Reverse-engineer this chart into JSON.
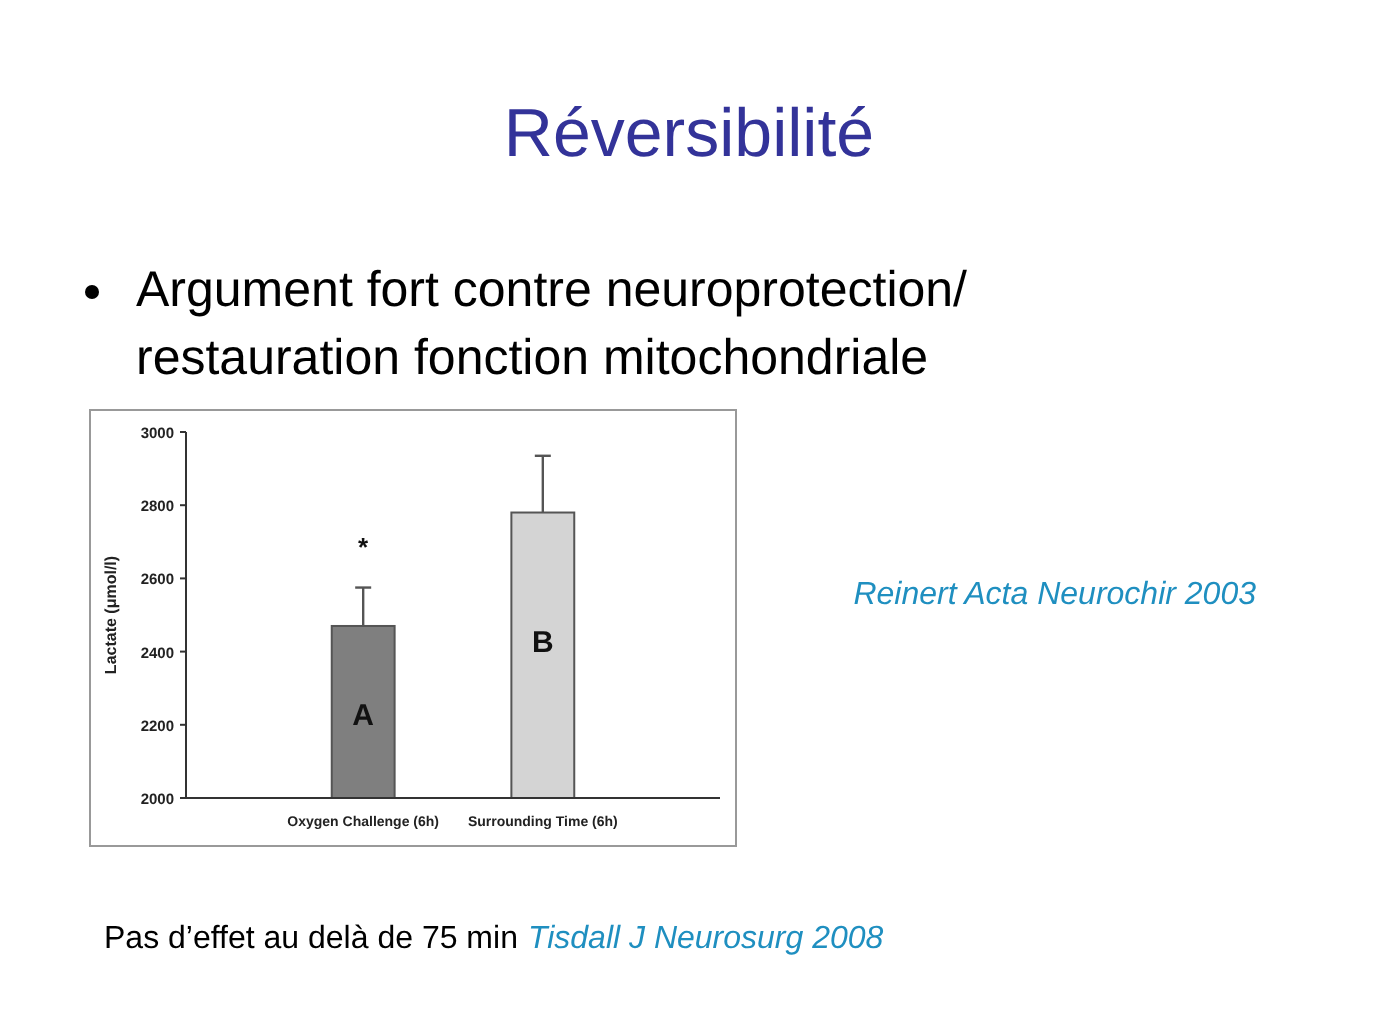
{
  "chart_data": {
    "type": "bar",
    "title": "Réversibilité",
    "subtitle": "Argument fort contre neuroprotection/ restauration fonction mitochondriale",
    "ylabel": "Lactate (μmol/l)",
    "categories": [
      "Oxygen Challenge (6h)",
      "Surrounding Time (6h)"
    ],
    "values": [
      2470,
      2780
    ],
    "errors": [
      105,
      155
    ],
    "colors": [
      "#7f7f7f",
      "#d4d4d4"
    ],
    "ylim": [
      2000,
      3000
    ],
    "yticks": [
      2000,
      2200,
      2400,
      2600,
      2800,
      3000
    ],
    "grid": false,
    "annotations": [
      "*",
      "A",
      "B",
      "Reinert Acta Neurochir 2003",
      "Pas d’effet au delà de 75 min",
      "Tisdall J Neurosurg 2008"
    ]
  }
}
